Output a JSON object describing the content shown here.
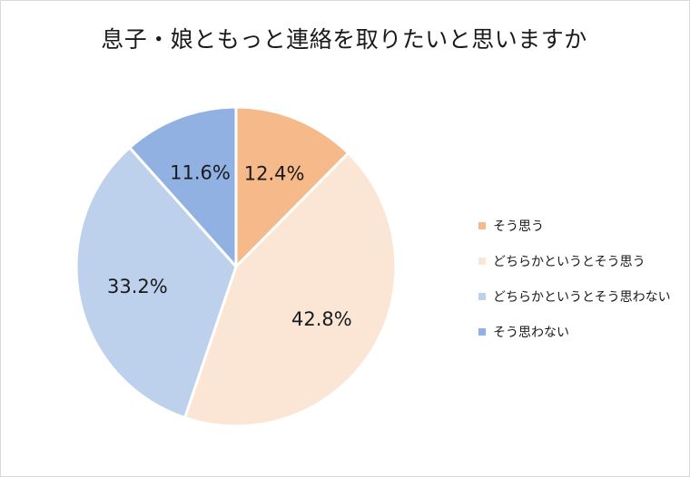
{
  "chart_data": {
    "type": "pie",
    "title": "息子・娘ともっと連絡を取りたいと思いますか",
    "categories": [
      "そう思う",
      "どちらかというとそう思う",
      "どちらかというとそう思わない",
      "そう思わない"
    ],
    "values": [
      12.4,
      42.8,
      33.2,
      11.6
    ],
    "value_labels": [
      "12.4%",
      "42.8%",
      "33.2%",
      "11.6%"
    ],
    "colors": [
      "#F6B98A",
      "#FBE6D6",
      "#BDD0EC",
      "#91B1E2"
    ],
    "legend_position": "right"
  }
}
